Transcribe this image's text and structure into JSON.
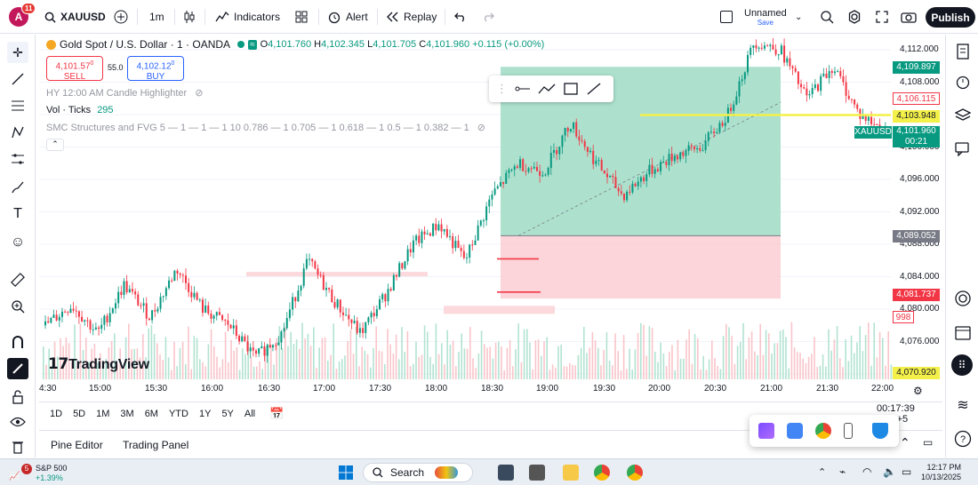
{
  "topbar": {
    "avatar_letter": "A",
    "avatar_badge": "11",
    "symbol": "XAUUSD",
    "interval": "1m",
    "indicators": "Indicators",
    "alert": "Alert",
    "replay": "Replay",
    "layout_name": "Unnamed",
    "layout_status": "Save",
    "publish": "Publish"
  },
  "legend": {
    "title": "Gold Spot / U.S. Dollar · 1 · OANDA",
    "open": "4,101.760",
    "high": "4,102.345",
    "low": "4,101.705",
    "close": "4,101.960",
    "change": "+0.115 (+0.00%)",
    "sell_price": "4,101.57",
    "sell_sup": "0",
    "sell_label": "SELL",
    "spread": "55.0",
    "buy_price": "4,102.12",
    "buy_sup": "0",
    "buy_label": "BUY",
    "indicator1": "HY 12:00 AM Candle Highlighter",
    "indicator2_name": "Vol · Ticks",
    "indicator2_value": "295",
    "indicator3": "SMC Structures and FVG 5 — 1 — 1 — 1 10 0.786 — 1 0.705 — 1 0.618 — 1 0.5 — 1 0.382 — 1"
  },
  "price_axis": {
    "ticks": [
      "4,112.000",
      "4,108.000",
      "4,104.000",
      "4,100.000",
      "4,096.000",
      "4,092.000",
      "4,088.000",
      "4,084.000",
      "4,080.000",
      "4,076.000",
      "4,072.000"
    ],
    "labels": {
      "high_level": "4,109.897",
      "red_level": "4,106.115",
      "yellow_level": "4,103.948",
      "symbol_tag": "XAUUSD",
      "current_price": "4,101.960",
      "countdown": "00:21",
      "grey_level": "4,089.052",
      "red_level2": "4,081.737",
      "volume_tag": "998",
      "low_level": "4,070.920"
    }
  },
  "time_axis": [
    "4:30",
    "15:00",
    "15:30",
    "16:00",
    "16:30",
    "17:00",
    "17:30",
    "18:00",
    "18:30",
    "19:00",
    "19:30",
    "20:00",
    "20:30",
    "21:00",
    "21:30",
    "22:00"
  ],
  "ranges": [
    "1D",
    "5D",
    "1M",
    "3M",
    "6M",
    "YTD",
    "1Y",
    "5Y",
    "All"
  ],
  "clock": "00:17:39 UTC+5",
  "bottom_tabs": [
    "Pine Editor",
    "Trading Panel"
  ],
  "watermark": "TradingView",
  "taskbar": {
    "ticker_name": "S&P 500",
    "ticker_change": "+1.39%",
    "ticker_badge": "5",
    "search": "Search",
    "time": "12:17 PM",
    "date": "10/13/2025"
  },
  "chart_data": {
    "type": "candlestick",
    "symbol": "XAUUSD",
    "interval": "1m",
    "x_labels": [
      "4:30",
      "15:00",
      "15:30",
      "16:00",
      "16:30",
      "17:00",
      "17:30",
      "18:00",
      "18:30",
      "19:00",
      "19:30",
      "20:00",
      "20:30",
      "21:00",
      "21:30",
      "22:00"
    ],
    "ylim": [
      4070,
      4114
    ],
    "close_path": [
      4078.0,
      4080.5,
      4077.0,
      4083.0,
      4079.0,
      4085.0,
      4080.0,
      4078.0,
      4074.0,
      4077.0,
      4086.0,
      4081.0,
      4077.0,
      4082.0,
      4088.0,
      4090.5,
      4086.0,
      4094.0,
      4098.0,
      4097.0,
      4103.0,
      4098.0,
      4094.0,
      4097.0,
      4099.0,
      4100.0,
      4104.0,
      4113.0,
      4112.0,
      4106.0,
      4110.0,
      4104.0,
      4101.96
    ],
    "long_position": {
      "entry": 4089.052,
      "target": 4109.897,
      "stop": 4081.737
    },
    "horizontal_line": 4103.948,
    "colors": {
      "up": "#089981",
      "down": "#f23645",
      "profit_zone": "#9fdcc6",
      "loss_zone": "#fbd0d5",
      "hline": "#f4f04a"
    }
  }
}
